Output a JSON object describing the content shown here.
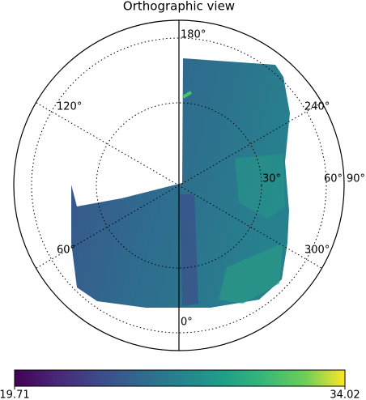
{
  "chart_data": {
    "type": "orthographic-map",
    "title": "Orthographic view",
    "graticule_labels": [
      "180°",
      "120°",
      "240°",
      "30°",
      "60°",
      "90°",
      "60°",
      "300°",
      "0°"
    ],
    "clim": [
      19.71,
      34.02
    ],
    "cticks": [
      19.71,
      34.02
    ],
    "colormap": "viridis"
  }
}
